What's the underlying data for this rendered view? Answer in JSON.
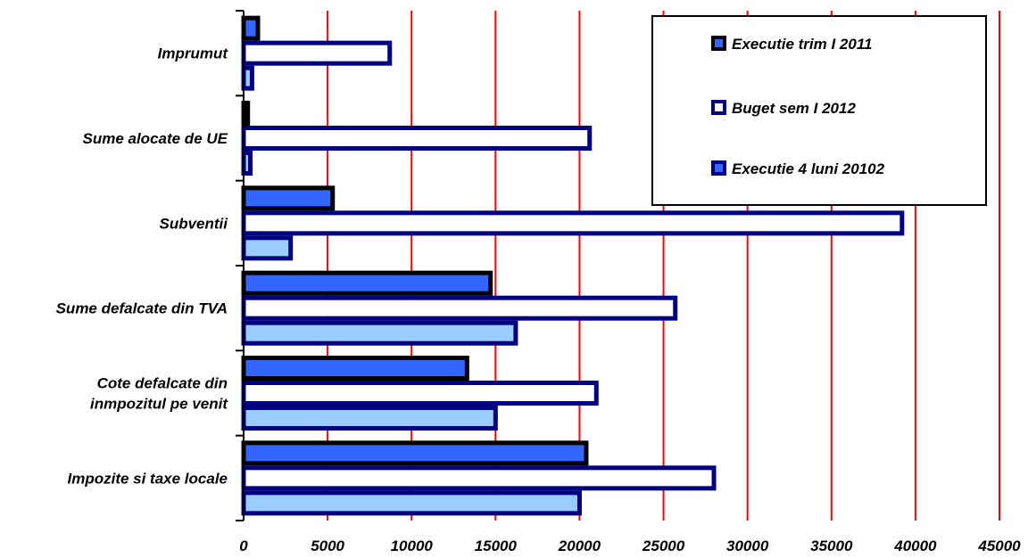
{
  "chart_data": {
    "type": "bar",
    "orientation": "horizontal",
    "categories": [
      [
        "Impozite si taxe locale"
      ],
      [
        "Cote defalcate din ",
        "inmpozitul pe venit"
      ],
      [
        "Sume defalcate din TVA"
      ],
      [
        "Subventii"
      ],
      [
        "Sume alocate de UE"
      ],
      [
        "Imprumut"
      ]
    ],
    "series": [
      {
        "name": "Executie trim I 2011",
        "values": [
          20400,
          13300,
          14700,
          5300,
          250,
          850
        ],
        "fill": "#3366ff",
        "stroke": "#000000",
        "legend_marker_fill": "#3366ff"
      },
      {
        "name": "Buget sem I 2012",
        "values": [
          28000,
          21000,
          25700,
          39200,
          20600,
          8700
        ],
        "fill": "#ffffff",
        "stroke": "#000080",
        "legend_marker_fill": "#ffffff"
      },
      {
        "name": "Executie 4 luni 20102",
        "values": [
          20000,
          15000,
          16200,
          2800,
          400,
          500
        ],
        "fill": "#99ccff",
        "stroke": "#000080",
        "legend_marker_fill": "#3366ff"
      }
    ],
    "xlim": [
      0,
      45000
    ],
    "xticks": [
      "0",
      "5000",
      "10000",
      "15000",
      "20000",
      "25000",
      "30000",
      "35000",
      "40000",
      "45000"
    ],
    "gridlines": "vertical",
    "gridline_color": "#ff0000",
    "legend_position": "top-right"
  }
}
